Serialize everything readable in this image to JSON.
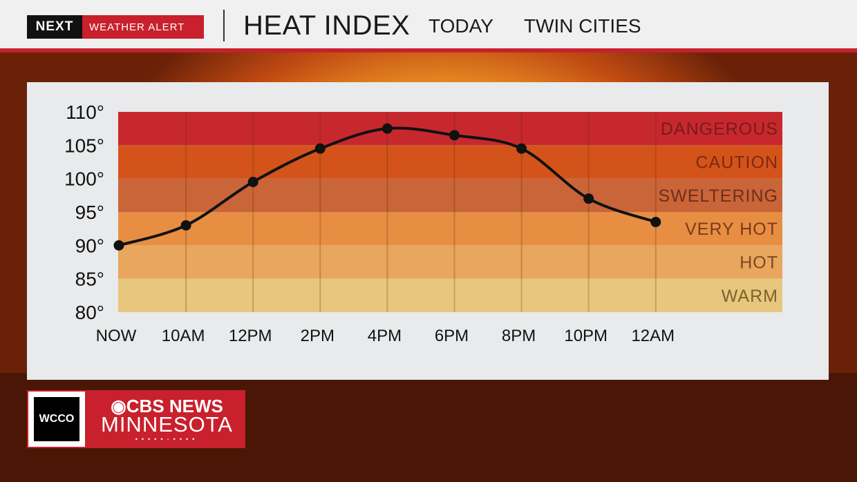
{
  "header": {
    "badge_next": "NEXT",
    "badge_alert": "WEATHER ALERT",
    "title": "HEAT INDEX",
    "subtitle_day": "TODAY",
    "subtitle_place": "TWIN CITIES"
  },
  "colors": {
    "brand_red": "#c8202c",
    "band_dangerous": "#c7282e",
    "band_caution": "#d4531a",
    "band_sweltering": "#c96538",
    "band_very_hot": "#e88e43",
    "band_hot": "#e8a65e",
    "band_warm": "#e7c77d"
  },
  "chart_data": {
    "type": "line",
    "categories": [
      "NOW",
      "10AM",
      "12PM",
      "2PM",
      "4PM",
      "6PM",
      "8PM",
      "10PM",
      "12AM"
    ],
    "values": [
      90,
      93,
      99.5,
      104.5,
      107.5,
      106.5,
      104.5,
      97,
      93.5
    ],
    "ylim": [
      80,
      110
    ],
    "yticks": [
      110,
      105,
      100,
      95,
      90,
      85,
      80
    ],
    "ytick_labels": [
      "110°",
      "105°",
      "100°",
      "95°",
      "90°",
      "85°",
      "80°"
    ],
    "bands": [
      {
        "label": "DANGEROUS",
        "from": 105,
        "to": 110,
        "color": "#c7282e",
        "text_color": "#7a1a1a"
      },
      {
        "label": "CAUTION",
        "from": 100,
        "to": 105,
        "color": "#d4531a",
        "text_color": "#7a2a10"
      },
      {
        "label": "SWELTERING",
        "from": 95,
        "to": 100,
        "color": "#c96538",
        "text_color": "#6e2e1a"
      },
      {
        "label": "VERY HOT",
        "from": 90,
        "to": 95,
        "color": "#e88e43",
        "text_color": "#7a3a18"
      },
      {
        "label": "HOT",
        "from": 85,
        "to": 90,
        "color": "#e8a65e",
        "text_color": "#7a4a20"
      },
      {
        "label": "WARM",
        "from": 80,
        "to": 85,
        "color": "#e7c77d",
        "text_color": "#80602a"
      }
    ]
  },
  "logo": {
    "station": "WCCO",
    "network": "CBS NEWS",
    "region": "MINNESOTA"
  }
}
